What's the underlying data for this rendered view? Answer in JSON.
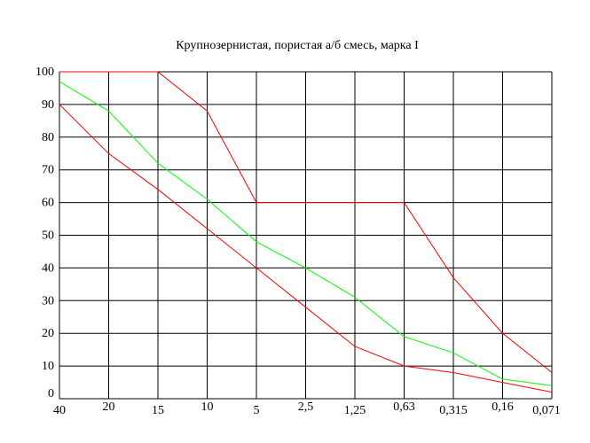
{
  "chart_data": {
    "type": "line",
    "title": "Крупнозернистая, пористая а/б смесь, марка I",
    "xlabel": "",
    "ylabel": "",
    "categories": [
      "40",
      "20",
      "15",
      "10",
      "5",
      "2,5",
      "1,25",
      "0,63",
      "0,315",
      "0,16",
      "0,071"
    ],
    "y_ticks": [
      "0",
      "10",
      "20",
      "30",
      "40",
      "50",
      "60",
      "70",
      "80",
      "90",
      "100"
    ],
    "ylim": [
      0,
      100
    ],
    "grid": true,
    "legend": "none",
    "series": [
      {
        "color": "#ff0000",
        "values": [
          100,
          100,
          100,
          88,
          60,
          60,
          60,
          60,
          37,
          20,
          8
        ]
      },
      {
        "color": "#00ff00",
        "values": [
          97,
          88,
          72,
          61,
          48,
          40,
          31,
          19,
          14,
          6,
          4
        ]
      },
      {
        "color": "#ff0000",
        "values": [
          90,
          75,
          64,
          52,
          40,
          28,
          16,
          10,
          8,
          5,
          2
        ]
      }
    ]
  }
}
